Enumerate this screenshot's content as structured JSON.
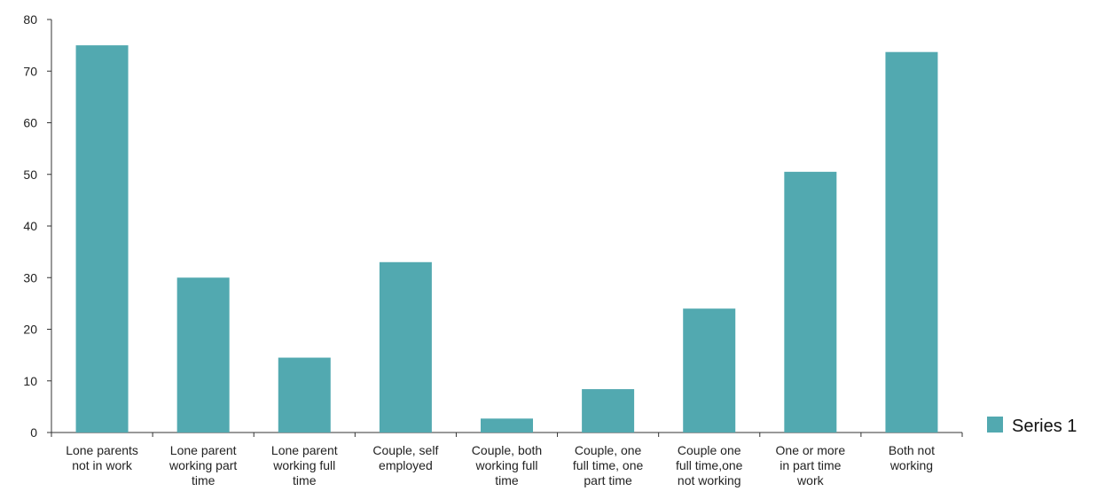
{
  "chart_data": {
    "type": "bar",
    "categories": [
      [
        "Lone parents",
        "not in work"
      ],
      [
        "Lone parent",
        "working part",
        "time"
      ],
      [
        "Lone parent",
        "working full",
        "time"
      ],
      [
        "Couple, self",
        "employed"
      ],
      [
        "Couple, both",
        "working full",
        "time"
      ],
      [
        "Couple, one",
        "full time, one",
        "part time"
      ],
      [
        "Couple one",
        "full time,one",
        "not working"
      ],
      [
        "One or more",
        "in part time",
        "work"
      ],
      [
        "Both not",
        "working"
      ]
    ],
    "series": [
      {
        "name": "Series 1",
        "values": [
          75,
          30,
          14.5,
          33,
          2.7,
          8.4,
          24,
          50.5,
          73.7
        ],
        "color": "#52a9b0"
      }
    ],
    "title": "",
    "xlabel": "",
    "ylabel": "",
    "ylim": [
      0,
      80
    ],
    "yticks": [
      "0",
      "10",
      "20",
      "30",
      "40",
      "50",
      "60",
      "70",
      "80"
    ],
    "grid": false,
    "legend": "right"
  }
}
